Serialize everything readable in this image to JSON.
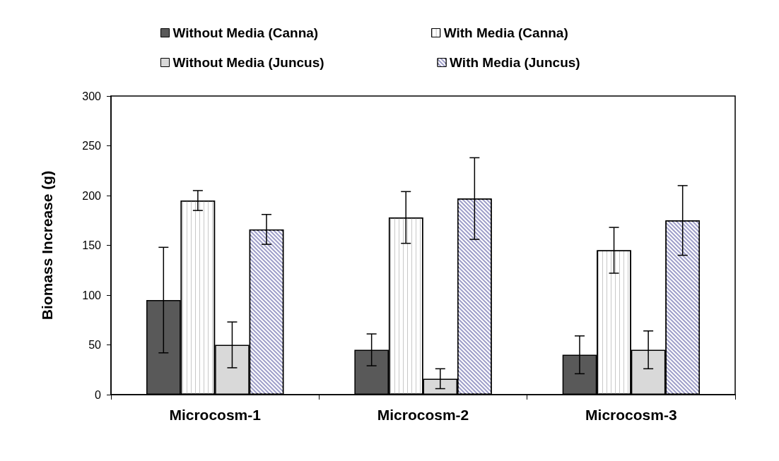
{
  "chart_data": {
    "type": "bar",
    "ylabel": "Biomass Increase (g)",
    "categories": [
      "Microcosm-1",
      "Microcosm-2",
      "Microcosm-3"
    ],
    "series": [
      {
        "name": "Without Media (Canna)",
        "color": "#595959",
        "values": [
          95,
          45,
          40
        ],
        "errors": [
          53,
          16,
          19
        ]
      },
      {
        "name": "With Media (Canna)",
        "color": "#ffffff",
        "values": [
          195,
          178,
          145
        ],
        "errors": [
          10,
          26,
          23
        ]
      },
      {
        "name": "Without Media (Juncus)",
        "color": "#d9d9d9",
        "values": [
          50,
          16,
          45
        ],
        "errors": [
          23,
          10,
          19
        ]
      },
      {
        "name": "With Media (Juncus)",
        "color": "#9d9dc8",
        "values": [
          166,
          197,
          175
        ],
        "errors": [
          15,
          41,
          35
        ]
      }
    ],
    "ylim": [
      0,
      300
    ],
    "yticks": [
      0,
      50,
      100,
      150,
      200,
      250,
      300
    ],
    "grid": false,
    "legend": "top"
  }
}
